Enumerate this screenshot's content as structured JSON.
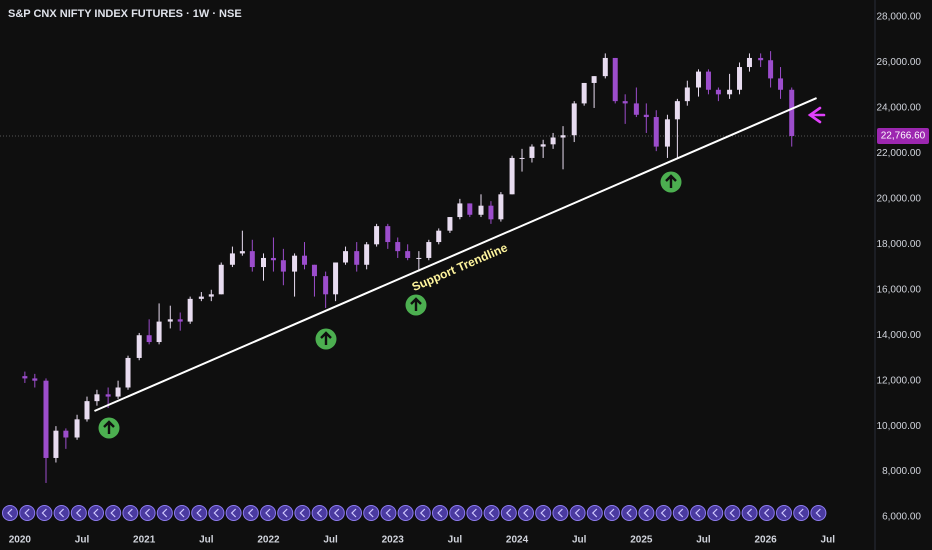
{
  "chart_data": {
    "type": "candlestick",
    "title": "S&P CNX NIFTY INDEX FUTURES · 1W · NSE",
    "annotation": "Support Trendline",
    "last_value": 22766.6,
    "last_value_label": "22,766.60",
    "up_color": "#e8dcf0",
    "down_color": "#9c4dcc",
    "trendline": {
      "x": [
        2020.6,
        2026.41
      ],
      "y": [
        10666,
        24436
      ],
      "color": "#ffffff"
    },
    "xlim": [
      2019.84,
      2026.88
    ],
    "ylim": [
      5430,
      28750
    ],
    "grid": false,
    "xticks": [
      2020,
      {
        "value": 2020.5,
        "label": "Jul"
      },
      2021,
      {
        "value": 2021.5,
        "label": "Jul"
      },
      2022,
      {
        "value": 2022.5,
        "label": "Jul"
      },
      2023,
      {
        "value": 2023.5,
        "label": "Jul"
      },
      2024,
      {
        "value": 2024.5,
        "label": "Jul"
      },
      2025,
      {
        "value": 2025.5,
        "label": "Jul"
      },
      2026,
      {
        "value": 2026.5,
        "label": "Jul"
      }
    ],
    "yticks": [
      {
        "value": 6000,
        "label": "6,000.00"
      },
      {
        "value": 8000,
        "label": "8,000.00"
      },
      {
        "value": 10000,
        "label": "10,000.00"
      },
      {
        "value": 12000,
        "label": "12,000.00"
      },
      {
        "value": 14000,
        "label": "14,000.00"
      },
      {
        "value": 16000,
        "label": "16,000.00"
      },
      {
        "value": 18000,
        "label": "18,000.00"
      },
      {
        "value": 20000,
        "label": "20,000.00"
      },
      {
        "value": 22000,
        "label": "22,000.00"
      },
      {
        "value": 24000,
        "label": "24,000.00"
      },
      {
        "value": 26000,
        "label": "26,000.00"
      },
      {
        "value": 28000,
        "label": "28,000.00"
      }
    ],
    "x": [
      2020.04,
      2020.12,
      2020.21,
      2020.29,
      2020.37,
      2020.46,
      2020.54,
      2020.62,
      2020.71,
      2020.79,
      2020.87,
      2020.96,
      2021.04,
      2021.12,
      2021.21,
      2021.29,
      2021.37,
      2021.46,
      2021.54,
      2021.62,
      2021.71,
      2021.79,
      2021.87,
      2021.96,
      2022.04,
      2022.12,
      2022.21,
      2022.29,
      2022.37,
      2022.46,
      2022.54,
      2022.62,
      2022.71,
      2022.79,
      2022.87,
      2022.96,
      2023.04,
      2023.12,
      2023.21,
      2023.29,
      2023.37,
      2023.46,
      2023.54,
      2023.62,
      2023.71,
      2023.79,
      2023.87,
      2023.96,
      2024.04,
      2024.12,
      2024.21,
      2024.29,
      2024.37,
      2024.46,
      2024.54,
      2024.62,
      2024.71,
      2024.79,
      2024.87,
      2024.96,
      2025.04,
      2025.12,
      2025.21,
      2025.29,
      2025.37,
      2025.46,
      2025.54,
      2025.62,
      2025.71,
      2025.79,
      2025.87,
      2025.96,
      2026.04,
      2026.12,
      2026.21
    ],
    "open": [
      12200,
      12100,
      12000,
      8600,
      9800,
      9500,
      10300,
      11100,
      11400,
      11300,
      11700,
      13000,
      14000,
      13700,
      14600,
      14700,
      14600,
      15600,
      15700,
      15800,
      17100,
      17600,
      17700,
      17000,
      17400,
      17300,
      16800,
      17500,
      17100,
      16600,
      15800,
      17200,
      17700,
      17100,
      18000,
      18800,
      18100,
      17700,
      17400,
      17400,
      18100,
      18600,
      19200,
      19800,
      19300,
      19700,
      19100,
      20200,
      21800,
      21800,
      22300,
      22400,
      22700,
      22800,
      24200,
      25100,
      25400,
      26200,
      24300,
      24200,
      23700,
      23600,
      22300,
      23500,
      24300,
      24900,
      25600,
      24800,
      24600,
      24800,
      25800,
      26200,
      26100,
      25300,
      24800
    ],
    "high": [
      12400,
      12300,
      12100,
      10000,
      9900,
      10500,
      11300,
      11600,
      11700,
      12000,
      13100,
      14100,
      14700,
      15400,
      15300,
      15000,
      15700,
      15900,
      16000,
      17200,
      17900,
      18600,
      18200,
      17600,
      18300,
      17800,
      17600,
      18100,
      17100,
      16800,
      17200,
      17900,
      18100,
      18100,
      18900,
      18900,
      18300,
      18000,
      17700,
      18200,
      18700,
      19200,
      20000,
      19800,
      20200,
      19900,
      20300,
      21900,
      22200,
      22400,
      22600,
      22900,
      23200,
      24300,
      25100,
      25400,
      26400,
      26200,
      24600,
      24900,
      24200,
      23900,
      23700,
      24400,
      25200,
      25700,
      25700,
      24900,
      25500,
      26000,
      26400,
      26400,
      26500,
      25800,
      24900
    ],
    "low": [
      11900,
      11700,
      7500,
      8400,
      9000,
      9400,
      10200,
      10900,
      10800,
      11200,
      11600,
      12900,
      13600,
      13600,
      14300,
      14200,
      14500,
      15500,
      15500,
      15800,
      17000,
      17500,
      16800,
      16400,
      16800,
      16200,
      15700,
      16900,
      15700,
      15200,
      15500,
      17100,
      16800,
      16900,
      17900,
      17800,
      17400,
      17300,
      16800,
      17300,
      18000,
      18500,
      19100,
      19200,
      19200,
      18900,
      19000,
      20200,
      21200,
      21600,
      21800,
      22200,
      21300,
      22500,
      24100,
      24000,
      25300,
      24200,
      23300,
      23600,
      22900,
      22100,
      21800,
      21800,
      24100,
      24500,
      24600,
      24300,
      24400,
      24600,
      25600,
      25800,
      24900,
      24400,
      22300
    ],
    "close": [
      12100,
      12000,
      8600,
      9800,
      9500,
      10300,
      11100,
      11400,
      11300,
      11700,
      13000,
      14000,
      13700,
      14600,
      14700,
      14600,
      15600,
      15700,
      15800,
      17100,
      17600,
      17700,
      17000,
      17400,
      17300,
      16800,
      17500,
      17100,
      16600,
      15800,
      17200,
      17700,
      17100,
      18000,
      18800,
      18100,
      17700,
      17400,
      17400,
      18100,
      18600,
      19200,
      19800,
      19300,
      19700,
      19100,
      20200,
      21800,
      21800,
      22300,
      22400,
      22700,
      22800,
      24200,
      25100,
      25400,
      26200,
      24300,
      24200,
      23700,
      23600,
      22300,
      23500,
      24300,
      24900,
      25600,
      24800,
      24600,
      24800,
      25800,
      26200,
      26100,
      25300,
      24800,
      22766.6
    ]
  }
}
